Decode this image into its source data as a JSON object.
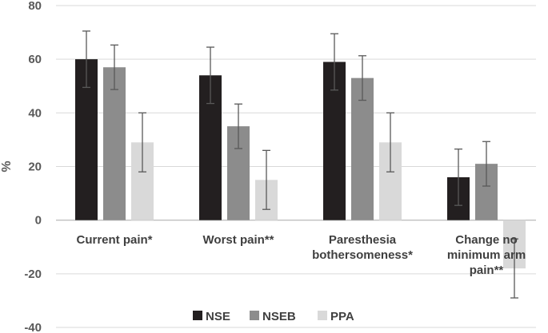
{
  "chart_data": {
    "type": "bar",
    "title": "",
    "xlabel": "",
    "ylabel": "%",
    "ylim": [
      -40,
      80
    ],
    "yticks": [
      80,
      60,
      40,
      20,
      0,
      -20,
      -40
    ],
    "grid": true,
    "legend_position": "bottom",
    "categories": [
      [
        "Current pain*"
      ],
      [
        "Worst pain**"
      ],
      [
        "Paresthesia",
        "bothersomeness*"
      ],
      [
        "Change no",
        "minimum arm",
        "pain**"
      ]
    ],
    "series": [
      {
        "name": "NSE",
        "color": "#231f20",
        "values": [
          60,
          54,
          59,
          16
        ],
        "error": [
          10.5,
          10.5,
          10.5,
          10.5
        ]
      },
      {
        "name": "NSEB",
        "color": "#8c8c8c",
        "values": [
          57,
          35,
          53,
          21
        ],
        "error": [
          8.3,
          8.3,
          8.3,
          8.3
        ]
      },
      {
        "name": "PPA",
        "color": "#d9d9d9",
        "values": [
          29,
          15,
          29,
          -18
        ],
        "error": [
          11,
          11,
          11,
          11
        ]
      }
    ]
  }
}
